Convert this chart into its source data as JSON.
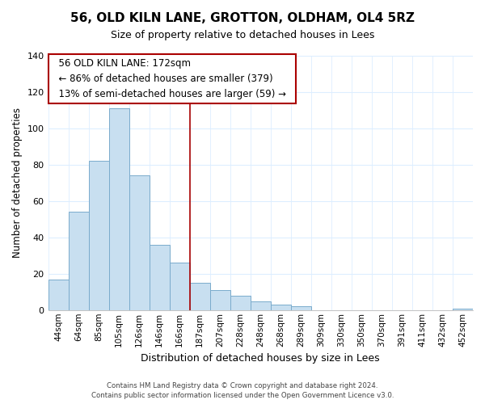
{
  "title": "56, OLD KILN LANE, GROTTON, OLDHAM, OL4 5RZ",
  "subtitle": "Size of property relative to detached houses in Lees",
  "xlabel": "Distribution of detached houses by size in Lees",
  "ylabel": "Number of detached properties",
  "bar_labels": [
    "44sqm",
    "64sqm",
    "85sqm",
    "105sqm",
    "126sqm",
    "146sqm",
    "166sqm",
    "187sqm",
    "207sqm",
    "228sqm",
    "248sqm",
    "268sqm",
    "289sqm",
    "309sqm",
    "330sqm",
    "350sqm",
    "370sqm",
    "391sqm",
    "411sqm",
    "432sqm",
    "452sqm"
  ],
  "bar_values": [
    17,
    54,
    82,
    111,
    74,
    36,
    26,
    15,
    11,
    8,
    5,
    3,
    2,
    0,
    0,
    0,
    0,
    0,
    0,
    0,
    1
  ],
  "bar_color": "#c8dff0",
  "bar_edge_color": "#7aabcc",
  "vline_x_index": 6.5,
  "vline_color": "#aa0000",
  "annotation_title": "56 OLD KILN LANE: 172sqm",
  "annotation_line1": "← 86% of detached houses are smaller (379)",
  "annotation_line2": "13% of semi-detached houses are larger (59) →",
  "annotation_box_color": "#ffffff",
  "annotation_box_edge_color": "#aa0000",
  "ylim": [
    0,
    140
  ],
  "yticks": [
    0,
    20,
    40,
    60,
    80,
    100,
    120,
    140
  ],
  "footnote1": "Contains HM Land Registry data © Crown copyright and database right 2024.",
  "footnote2": "Contains public sector information licensed under the Open Government Licence v3.0.",
  "background_color": "#ffffff",
  "grid_color": "#ddeeff"
}
